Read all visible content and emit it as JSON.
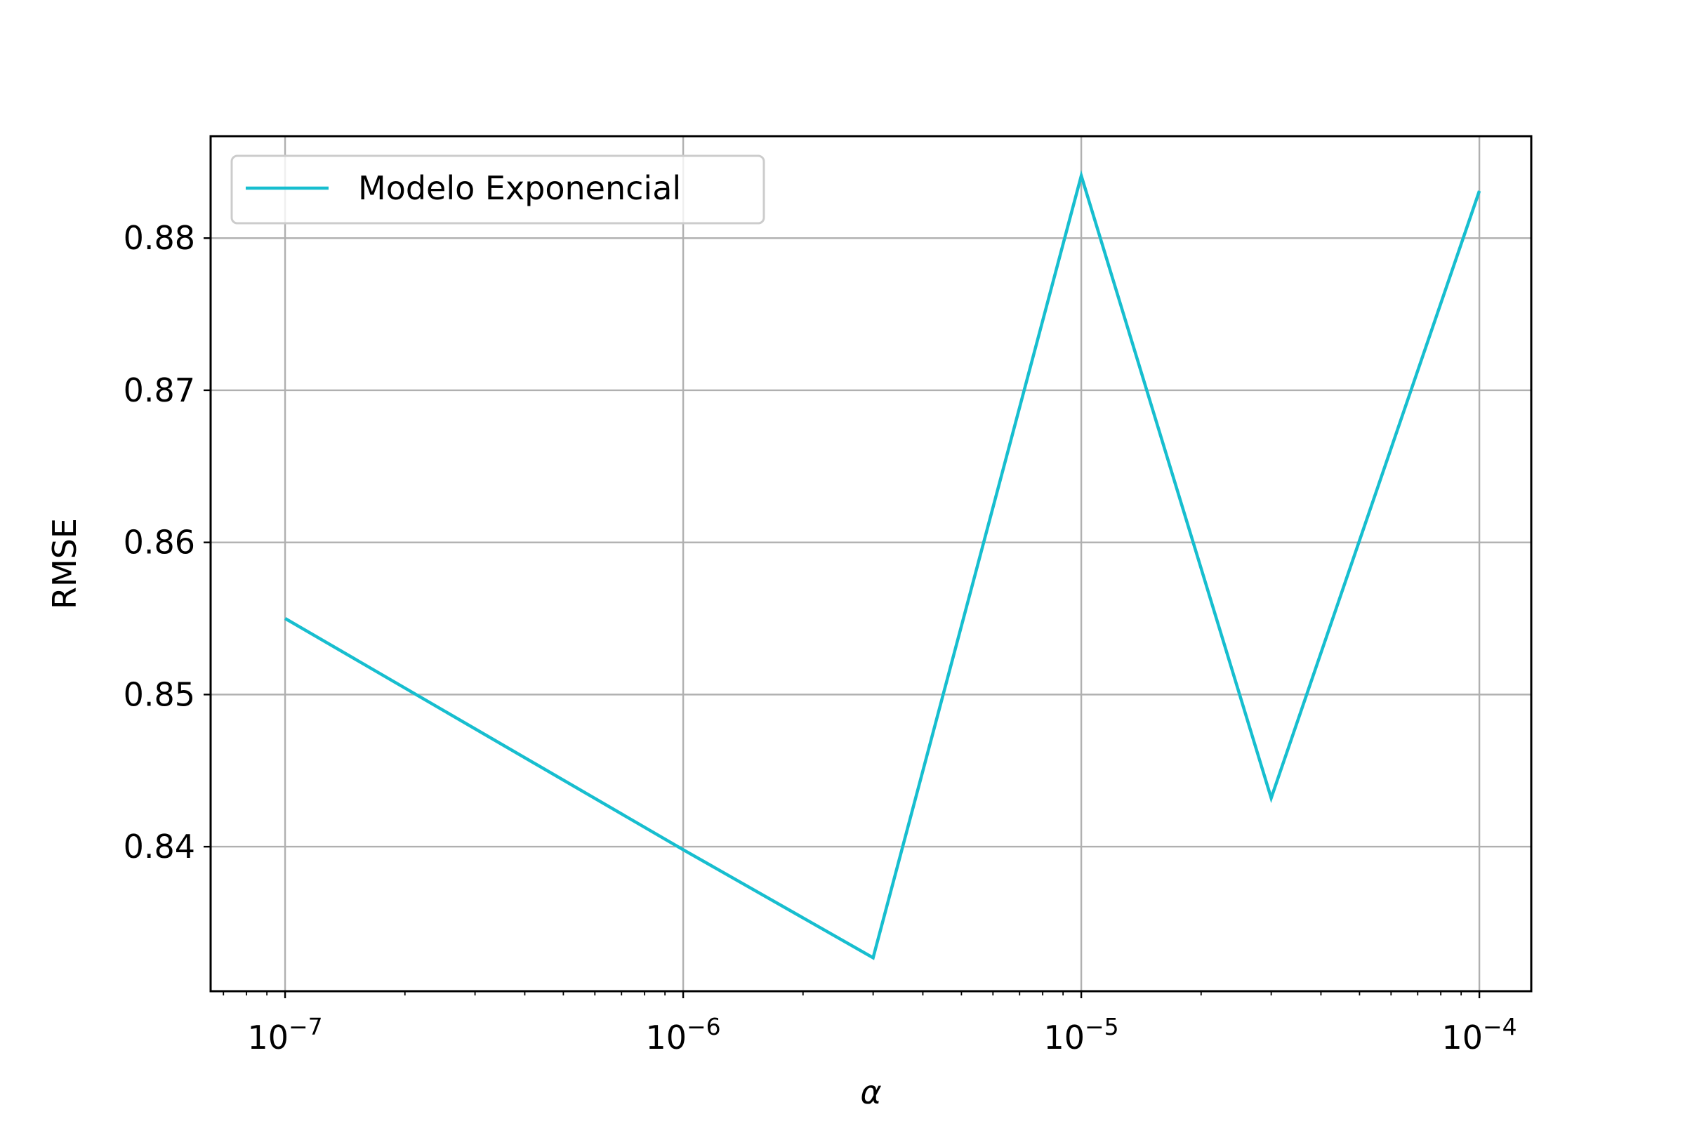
{
  "chart_data": {
    "type": "line",
    "title": "",
    "xlabel": "α",
    "ylabel": "RMSE",
    "xscale": "log",
    "xlim": [
      6.5e-08,
      0.000135
    ],
    "ylim": [
      0.8305,
      0.8867
    ],
    "x_ticks": [
      {
        "value": 1e-07,
        "base": "10",
        "exponent": "−7"
      },
      {
        "value": 1e-06,
        "base": "10",
        "exponent": "−6"
      },
      {
        "value": 1e-05,
        "base": "10",
        "exponent": "−5"
      },
      {
        "value": 0.0001,
        "base": "10",
        "exponent": "−4"
      }
    ],
    "y_ticks": [
      {
        "value": 0.84,
        "label": "0.84"
      },
      {
        "value": 0.85,
        "label": "0.85"
      },
      {
        "value": 0.86,
        "label": "0.86"
      },
      {
        "value": 0.87,
        "label": "0.87"
      },
      {
        "value": 0.88,
        "label": "0.88"
      }
    ],
    "grid": true,
    "legend_position": "top-left",
    "series": [
      {
        "name": "Modelo Exponencial",
        "color": "#17becf",
        "x": [
          1e-07,
          1e-06,
          3e-06,
          1e-05,
          3e-05,
          0.0001
        ],
        "y": [
          0.855,
          0.8398,
          0.8327,
          0.8841,
          0.8432,
          0.8831
        ]
      }
    ]
  }
}
